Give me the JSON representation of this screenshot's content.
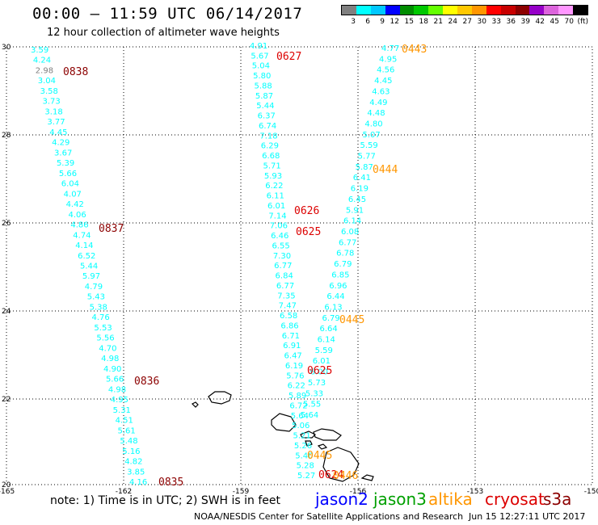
{
  "header": {
    "title": "00:00 – 11:59 UTC 06/14/2017",
    "subtitle": "12 hour collection of altimeter wave heights"
  },
  "scale": {
    "colors": [
      "#808080",
      "#00ffff",
      "#00c8ff",
      "#0000ff",
      "#008c00",
      "#00c800",
      "#64ff00",
      "#ffff00",
      "#ffc800",
      "#ff9600",
      "#ff0000",
      "#c80000",
      "#8c0000",
      "#9600c8",
      "#dc64dc",
      "#ff96ff",
      "#000000"
    ],
    "labels": [
      "3",
      "6",
      "9",
      "12",
      "15",
      "18",
      "21",
      "24",
      "27",
      "30",
      "33",
      "36",
      "39",
      "42",
      "45",
      "70",
      "(ft)"
    ]
  },
  "axes": {
    "lat_labels": [
      "30",
      "28",
      "26",
      "24",
      "22",
      "20"
    ],
    "lon_labels": [
      "-165",
      "-162",
      "-159",
      "-156",
      "-153",
      "-150"
    ]
  },
  "tracks": [
    {
      "name": "track-0838-0835",
      "color": "#00ffff",
      "values": [
        "3.59",
        "4.24",
        "2.98",
        "3.04",
        "3.58",
        "3.73",
        "3.18",
        "3.77",
        "4.45",
        "4.29",
        "3.67",
        "5.39",
        "5.66",
        "6.04",
        "4.07",
        "4.42",
        "4.06",
        "4.86",
        "4.74",
        "4.14",
        "6.52",
        "5.44",
        "5.97",
        "4.79",
        "5.43",
        "5.38",
        "4.76",
        "5.53",
        "5.56",
        "4.70",
        "4.98",
        "4.90",
        "5.66",
        "4.98",
        "4.95",
        "5.31",
        "4.51",
        "5.61",
        "5.48",
        "5.16",
        "4.82",
        "3.85",
        "4.16"
      ]
    },
    {
      "name": "track-0627-0624",
      "color": "#00ffff",
      "values": [
        "4.91",
        "5.67",
        "5.04",
        "5.80",
        "5.88",
        "5.87",
        "5.44",
        "6.37",
        "6.74",
        "7.18",
        "6.29",
        "6.68",
        "5.71",
        "5.93",
        "6.22",
        "6.11",
        "6.01",
        "7.14",
        "7.06",
        "6.46",
        "6.55",
        "7.30",
        "6.77",
        "6.84",
        "6.77",
        "7.35",
        "7.47",
        "6.58",
        "6.86",
        "6.71",
        "6.91",
        "6.47",
        "6.19",
        "5.76",
        "6.22",
        "5.89",
        "6.72",
        "5.64",
        "5.06",
        "5.21",
        "5.26",
        "5.40",
        "5.28",
        "5.27"
      ]
    },
    {
      "name": "track-0443-0444-0445",
      "color": "#00ffff",
      "values": [
        "4.77",
        "4.95",
        "4.56",
        "4.45",
        "4.63",
        "4.49",
        "4.48",
        "4.80",
        "5.07",
        "5.59",
        "5.77",
        "5.87",
        "6.41",
        "6.19",
        "6.45",
        "5.91",
        "6.14",
        "6.08",
        "6.77",
        "6.78",
        "6.79",
        "6.85",
        "6.96",
        "6.44",
        "6.13",
        "6.79",
        "6.64",
        "6.14",
        "5.59",
        "6.01",
        "6.00",
        "5.73",
        "5.33",
        "5.55",
        "5.64"
      ]
    }
  ],
  "pass_labels": [
    {
      "text": "0838",
      "sat": "s3a"
    },
    {
      "text": "0837",
      "sat": "s3a"
    },
    {
      "text": "0836",
      "sat": "s3a"
    },
    {
      "text": "0835",
      "sat": "s3a"
    },
    {
      "text": "0627",
      "sat": "cryosat"
    },
    {
      "text": "0626",
      "sat": "cryosat"
    },
    {
      "text": "0625",
      "sat": "cryosat"
    },
    {
      "text": "0625",
      "sat": "cryosat"
    },
    {
      "text": "0624",
      "sat": "cryosat"
    },
    {
      "text": "0443",
      "sat": "altika"
    },
    {
      "text": "0444",
      "sat": "altika"
    },
    {
      "text": "0445",
      "sat": "altika"
    },
    {
      "text": "0445",
      "sat": "altika"
    },
    {
      "text": "0446",
      "sat": "altika"
    }
  ],
  "sat_colors": {
    "s3a": "#8c0000",
    "cryosat": "#dc0000",
    "altika": "#ff9600"
  },
  "footer": {
    "note": "note: 1) Time is in UTC; 2) SWH is in feet",
    "legend": [
      {
        "label": "jason2",
        "color": "#0000ff"
      },
      {
        "label": "jason3",
        "color": "#00a000"
      },
      {
        "label": "altika",
        "color": "#ff9600"
      },
      {
        "label": "cryosat",
        "color": "#dc0000"
      },
      {
        "label": "s3a",
        "color": "#8c0000"
      }
    ],
    "credit": "NOAA/NESDIS Center for Satellite Applications and Research",
    "timestamp": "Jun 15 12:27:11 UTC 2017"
  }
}
